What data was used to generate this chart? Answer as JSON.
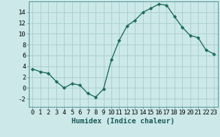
{
  "x": [
    0,
    1,
    2,
    3,
    4,
    5,
    6,
    7,
    8,
    9,
    10,
    11,
    12,
    13,
    14,
    15,
    16,
    17,
    18,
    19,
    20,
    21,
    22,
    23
  ],
  "y": [
    3.5,
    3.0,
    2.7,
    1.2,
    0.0,
    0.8,
    0.5,
    -1.0,
    -1.7,
    -0.2,
    5.2,
    8.8,
    11.5,
    12.5,
    14.0,
    14.7,
    15.5,
    15.3,
    13.2,
    11.2,
    9.7,
    9.3,
    7.0,
    6.3
  ],
  "line_color": "#1a6b5a",
  "marker": "D",
  "marker_size": 2.5,
  "bg_color": "#cce8e8",
  "grid_color": "#aacfcf",
  "xlabel": "Humidex (Indice chaleur)",
  "ylabel": "",
  "xlim": [
    -0.5,
    23.5
  ],
  "ylim": [
    -3.5,
    16
  ],
  "yticks": [
    -2,
    0,
    2,
    4,
    6,
    8,
    10,
    12,
    14
  ],
  "xticks": [
    0,
    1,
    2,
    3,
    4,
    5,
    6,
    7,
    8,
    9,
    10,
    11,
    12,
    13,
    14,
    15,
    16,
    17,
    18,
    19,
    20,
    21,
    22,
    23
  ],
  "xtick_labels": [
    "0",
    "1",
    "2",
    "3",
    "4",
    "5",
    "6",
    "7",
    "8",
    "9",
    "10",
    "11",
    "12",
    "13",
    "14",
    "15",
    "16",
    "17",
    "18",
    "19",
    "20",
    "21",
    "22",
    "23"
  ],
  "tick_fontsize": 6.5,
  "label_fontsize": 7.5
}
